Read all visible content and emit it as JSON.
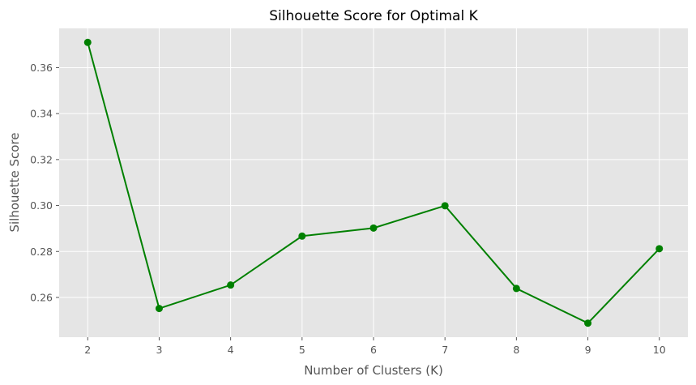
{
  "chart_data": {
    "type": "line",
    "title": "Silhouette Score for Optimal K",
    "xlabel": "Number of Clusters (K)",
    "ylabel": "Silhouette Score",
    "x": [
      2,
      3,
      4,
      5,
      6,
      7,
      8,
      9,
      10
    ],
    "series": [
      {
        "values": [
          0.371,
          0.2552,
          0.2654,
          0.2867,
          0.2902,
          0.2999,
          0.2639,
          0.2488,
          0.2812
        ],
        "color": "#008000",
        "marker": "circle"
      }
    ],
    "xticks": [
      "2",
      "3",
      "4",
      "5",
      "6",
      "7",
      "8",
      "9",
      "10"
    ],
    "yticks": [
      "0.26",
      "0.28",
      "0.30",
      "0.32",
      "0.34",
      "0.36"
    ],
    "xlim": [
      1.6,
      10.4
    ],
    "ylim": [
      0.2427,
      0.3771
    ],
    "grid": true,
    "background": "#e5e5e5",
    "grid_color": "#ffffff"
  }
}
